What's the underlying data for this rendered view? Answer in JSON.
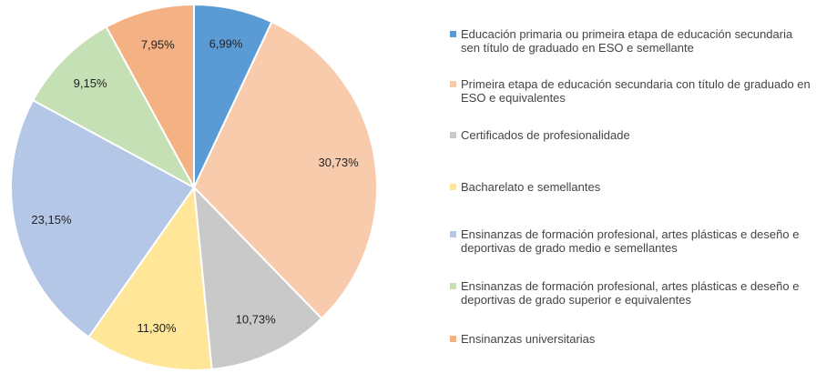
{
  "chart_data": {
    "type": "pie",
    "categories": [
      "Educación primaria ou primeira etapa de educación secundaria sen título de graduado en ESO e semellante",
      "Primeira etapa de educación secundaria con título de graduado en ESO e equivalentes",
      "Certificados de profesionalidade",
      "Bacharelato e semellantes",
      "Ensinanzas de formación profesional, artes plásticas e deseño e deportivas de grado medio e semellantes",
      "Ensinanzas de formación profesional, artes plásticas e deseño e deportivas de grado superior e equivalentes",
      "Ensinanzas universitarias"
    ],
    "values": [
      6.99,
      30.73,
      10.73,
      11.3,
      23.15,
      9.15,
      7.95
    ],
    "value_labels": [
      "6,99%",
      "30,73%",
      "10,73%",
      "11,30%",
      "23,15%",
      "9,15%",
      "7,95%"
    ],
    "colors": [
      "#5b9bd5",
      "#f8cbad",
      "#c9c9c9",
      "#ffe699",
      "#b4c7e7",
      "#c5e0b4",
      "#f4b183"
    ],
    "legend": "right"
  }
}
